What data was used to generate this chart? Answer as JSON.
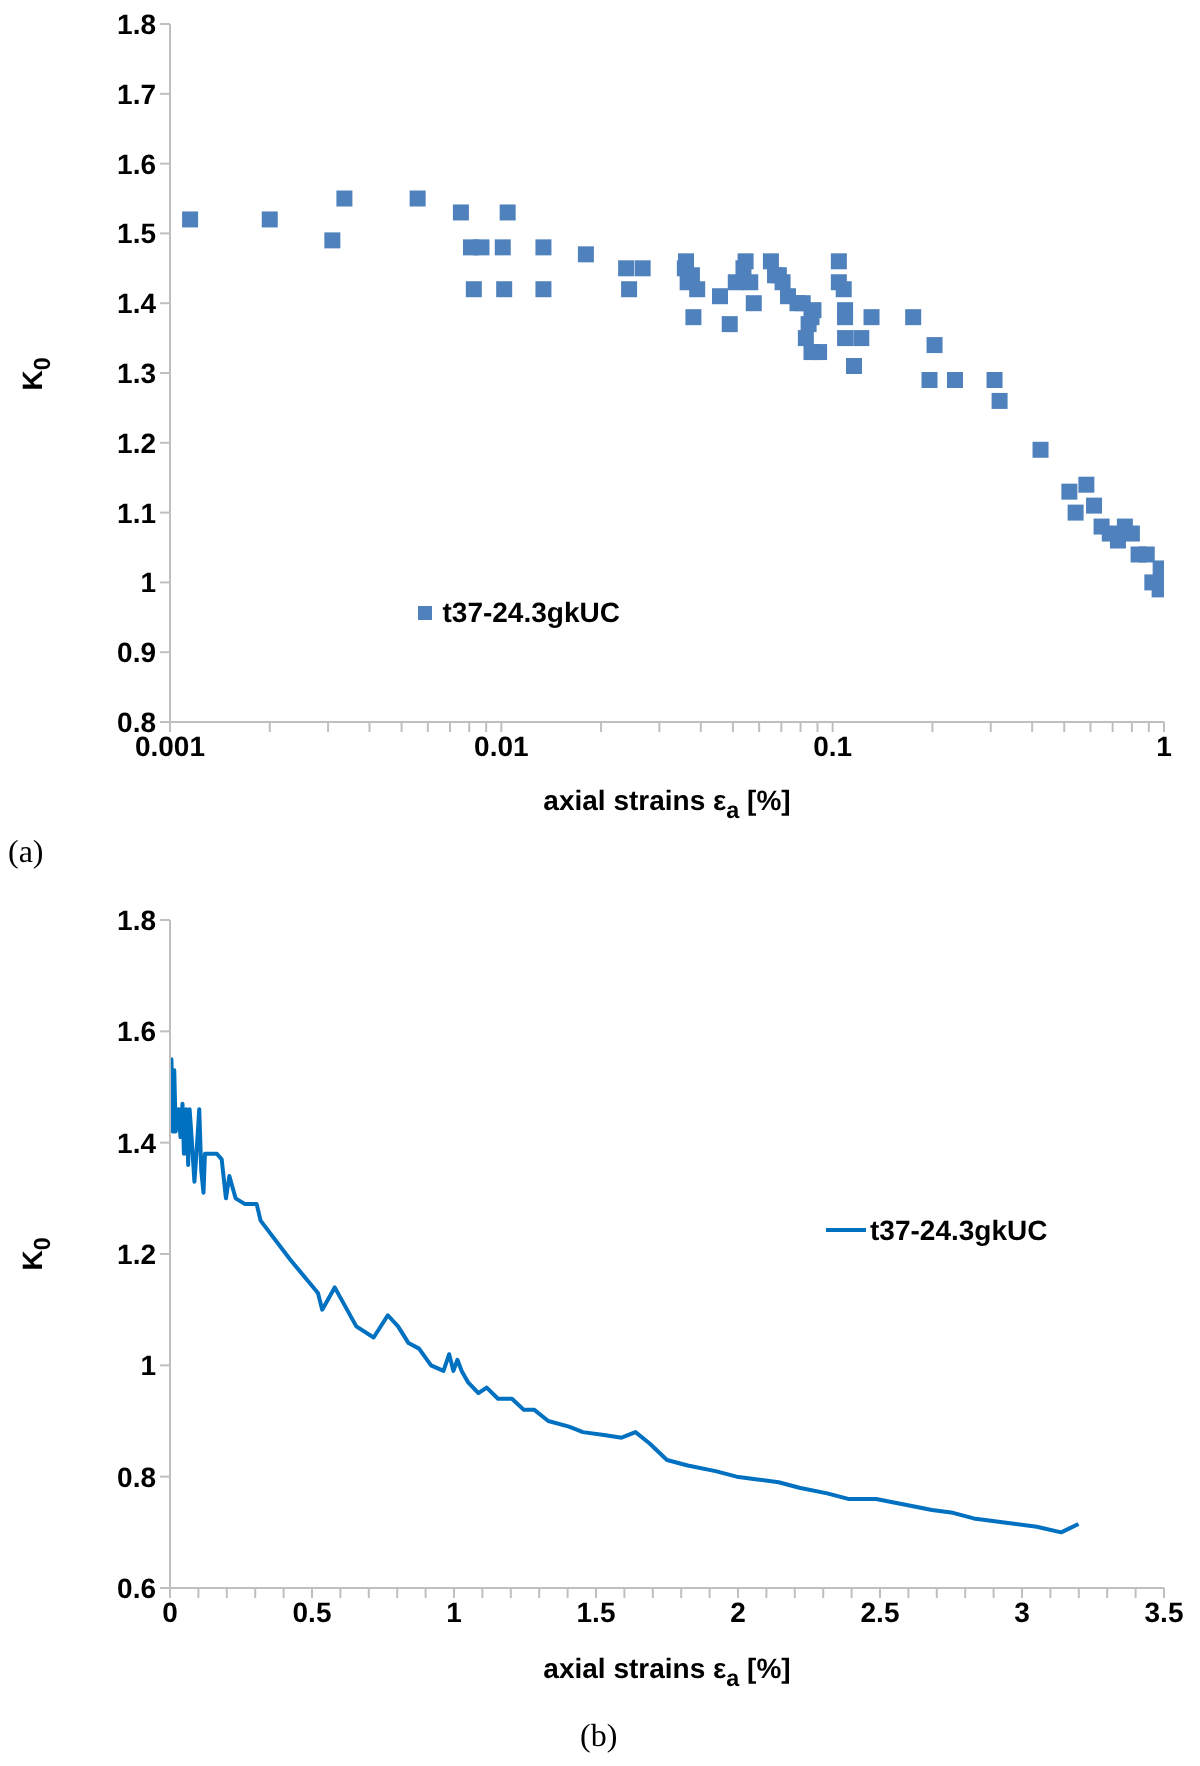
{
  "chart_data": [
    {
      "type": "scatter",
      "xlabel": "axial strains ε$_{a}$ [%]",
      "ylabel": "K$_{0}$",
      "annotations": [
        "(a)"
      ],
      "log": "x",
      "marker": "square",
      "legend": "bottom left",
      "grid": false,
      "xlim": [
        0.001,
        1
      ],
      "xticks": [
        0.001,
        {
          "value": 0.002,
          "label": null
        },
        {
          "value": 0.003,
          "label": null
        },
        {
          "value": 0.004,
          "label": null
        },
        {
          "value": 0.005,
          "label": null
        },
        {
          "value": 0.006,
          "label": null
        },
        {
          "value": 0.007,
          "label": null
        },
        {
          "value": 0.008,
          "label": null
        },
        {
          "value": 0.009,
          "label": null
        },
        0.01,
        {
          "value": 0.02,
          "label": null
        },
        {
          "value": 0.03,
          "label": null
        },
        {
          "value": 0.04,
          "label": null
        },
        {
          "value": 0.05,
          "label": null
        },
        {
          "value": 0.06,
          "label": null
        },
        {
          "value": 0.07,
          "label": null
        },
        {
          "value": 0.08,
          "label": null
        },
        {
          "value": 0.09,
          "label": null
        },
        0.1,
        {
          "value": 0.2,
          "label": null
        },
        {
          "value": 0.3,
          "label": null
        },
        {
          "value": 0.4,
          "label": null
        },
        {
          "value": 0.5,
          "label": null
        },
        {
          "value": 0.6,
          "label": null
        },
        {
          "value": 0.7,
          "label": null
        },
        {
          "value": 0.8,
          "label": null
        },
        {
          "value": 0.9,
          "label": null
        },
        1
      ],
      "ylim": [
        0.8,
        1.8
      ],
      "yticks": [
        0.8,
        0.9,
        1,
        1.1,
        1.2,
        1.3,
        1.4,
        1.5,
        1.6,
        1.7,
        1.8
      ],
      "series": [
        {
          "name": "t37-24.3gkUC",
          "color": "#4f81bd",
          "x": [
            0.00115,
            0.002,
            0.00309,
            0.00336,
            0.00559,
            0.00755,
            0.0081,
            0.00826,
            0.00871,
            0.0101,
            0.0102,
            0.01045,
            0.0134,
            0.0134,
            0.018,
            0.0238,
            0.0243,
            0.0267,
            0.0361,
            0.0358,
            0.0365,
            0.0376,
            0.038,
            0.039,
            0.0457,
            0.0489,
            0.051,
            0.0538,
            0.0546,
            0.0564,
            0.0578,
            0.0651,
            0.067,
            0.0688,
            0.0706,
            0.0733,
            0.0783,
            0.0812,
            0.083,
            0.0846,
            0.0863,
            0.0875,
            0.0863,
            0.091,
            0.1044,
            0.1044,
            0.108,
            0.109,
            0.109,
            0.109,
            0.116,
            0.122,
            0.131,
            0.175,
            0.203,
            0.196,
            0.234,
            0.308,
            0.319,
            0.424,
            0.518,
            0.541,
            0.583,
            0.615,
            0.648,
            0.686,
            0.726,
            0.762,
            0.8,
            0.838,
            0.887,
            0.922,
            0.977,
            0.99,
            0.97
          ],
          "values": [
            1.52,
            1.52,
            1.49,
            1.55,
            1.55,
            1.53,
            1.48,
            1.42,
            1.48,
            1.48,
            1.42,
            1.53,
            1.48,
            1.42,
            1.47,
            1.45,
            1.42,
            1.45,
            1.46,
            1.45,
            1.43,
            1.44,
            1.38,
            1.42,
            1.41,
            1.37,
            1.43,
            1.45,
            1.46,
            1.43,
            1.4,
            1.46,
            1.44,
            1.44,
            1.43,
            1.41,
            1.4,
            1.4,
            1.35,
            1.37,
            1.38,
            1.39,
            1.33,
            1.33,
            1.46,
            1.43,
            1.42,
            1.39,
            1.38,
            1.35,
            1.31,
            1.35,
            1.38,
            1.38,
            1.34,
            1.29,
            1.29,
            1.29,
            1.26,
            1.19,
            1.13,
            1.1,
            1.14,
            1.11,
            1.08,
            1.07,
            1.06,
            1.08,
            1.07,
            1.04,
            1.04,
            1.0,
            1.02,
            1.01,
            0.99
          ]
        }
      ]
    },
    {
      "type": "line",
      "xlabel": "axial strains ε$_{a}$ [%]",
      "ylabel": "K$_{0}$",
      "annotations": [
        "(b)"
      ],
      "marker": "none",
      "line_style": "solid",
      "legend": "right",
      "grid": false,
      "xlim": [
        0,
        3.5
      ],
      "xticks": [
        0,
        {
          "value": 0.1,
          "label": null
        },
        {
          "value": 0.2,
          "label": null
        },
        {
          "value": 0.3,
          "label": null
        },
        {
          "value": 0.4,
          "label": null
        },
        0.5,
        {
          "value": 0.6,
          "label": null
        },
        {
          "value": 0.7,
          "label": null
        },
        {
          "value": 0.8,
          "label": null
        },
        {
          "value": 0.9,
          "label": null
        },
        1,
        {
          "value": 1.1,
          "label": null
        },
        {
          "value": 1.2,
          "label": null
        },
        {
          "value": 1.3,
          "label": null
        },
        {
          "value": 1.4,
          "label": null
        },
        1.5,
        {
          "value": 1.6,
          "label": null
        },
        {
          "value": 1.7,
          "label": null
        },
        {
          "value": 1.8,
          "label": null
        },
        {
          "value": 1.9,
          "label": null
        },
        2,
        {
          "value": 2.1,
          "label": null
        },
        {
          "value": 2.2,
          "label": null
        },
        {
          "value": 2.3,
          "label": null
        },
        {
          "value": 2.4,
          "label": null
        },
        2.5,
        {
          "value": 2.6,
          "label": null
        },
        {
          "value": 2.7,
          "label": null
        },
        {
          "value": 2.8,
          "label": null
        },
        {
          "value": 2.9,
          "label": null
        },
        3,
        {
          "value": 3.1,
          "label": null
        },
        {
          "value": 3.2,
          "label": null
        },
        {
          "value": 3.3,
          "label": null
        },
        {
          "value": 3.4,
          "label": null
        },
        3.5
      ],
      "ylim": [
        0.6,
        1.8
      ],
      "yticks": [
        0.6,
        0.8,
        1,
        1.2,
        1.4,
        1.6,
        1.8
      ],
      "series": [
        {
          "name": "t37-24.3gkUC",
          "color": "#0070c0",
          "x": [
            0,
            0.005,
            0.01,
            0.015,
            0.02,
            0.03,
            0.037,
            0.044,
            0.049,
            0.057,
            0.064,
            0.069,
            0.076,
            0.086,
            0.093,
            0.103,
            0.11,
            0.118,
            0.123,
            0.165,
            0.182,
            0.197,
            0.209,
            0.231,
            0.263,
            0.305,
            0.319,
            0.423,
            0.521,
            0.536,
            0.58,
            0.656,
            0.717,
            0.767,
            0.803,
            0.84,
            0.877,
            0.919,
            0.963,
            0.983,
            0.998,
            1.012,
            1.027,
            1.049,
            1.086,
            1.115,
            1.155,
            1.204,
            1.246,
            1.283,
            1.332,
            1.405,
            1.454,
            1.528,
            1.59,
            1.639,
            1.688,
            1.75,
            1.823,
            1.921,
            1.995,
            2.069,
            2.143,
            2.216,
            2.314,
            2.388,
            2.486,
            2.585,
            2.683,
            2.757,
            2.83,
            2.904,
            2.978,
            3.052,
            3.138,
            3.199
          ],
          "values": [
            1.44,
            1.55,
            1.42,
            1.53,
            1.42,
            1.46,
            1.41,
            1.47,
            1.38,
            1.46,
            1.36,
            1.46,
            1.41,
            1.33,
            1.38,
            1.46,
            1.35,
            1.31,
            1.38,
            1.38,
            1.37,
            1.3,
            1.34,
            1.3,
            1.29,
            1.29,
            1.26,
            1.19,
            1.13,
            1.1,
            1.14,
            1.07,
            1.05,
            1.09,
            1.07,
            1.04,
            1.03,
            1.0,
            0.99,
            1.02,
            0.99,
            1.01,
            0.99,
            0.97,
            0.95,
            0.96,
            0.94,
            0.94,
            0.92,
            0.92,
            0.9,
            0.89,
            0.88,
            0.875,
            0.87,
            0.88,
            0.86,
            0.83,
            0.82,
            0.81,
            0.8,
            0.795,
            0.79,
            0.78,
            0.77,
            0.76,
            0.76,
            0.75,
            0.74,
            0.735,
            0.725,
            0.72,
            0.715,
            0.71,
            0.7,
            0.715
          ]
        }
      ]
    }
  ]
}
